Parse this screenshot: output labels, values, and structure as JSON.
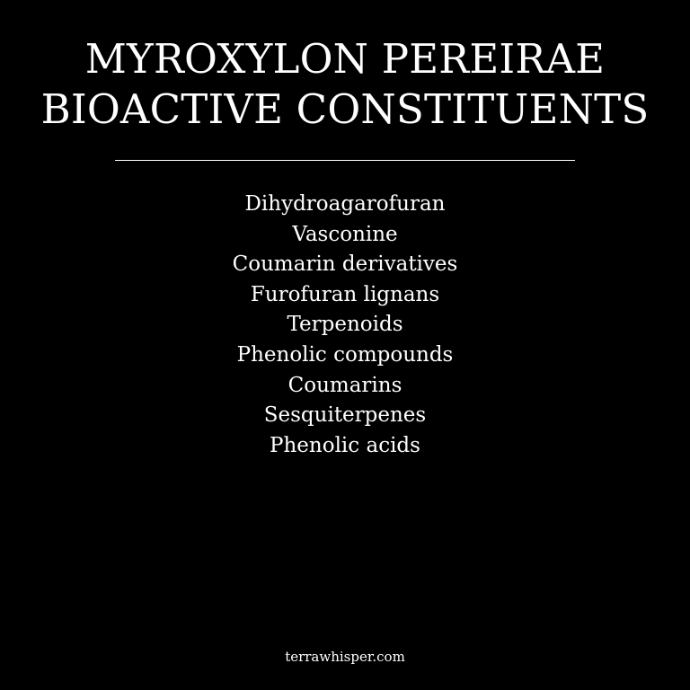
{
  "title": {
    "line1": "MYROXYLON PEREIRAE",
    "line2": "BIOACTIVE CONSTITUENTS"
  },
  "items": [
    "Dihydroagarofuran",
    "Vasconine",
    "Coumarin derivatives",
    "Furofuran lignans",
    "Terpenoids",
    "Phenolic compounds",
    "Coumarins",
    "Sesquiterpenes",
    "Phenolic acids"
  ],
  "footer": {
    "site": "terrawhisper.com"
  },
  "colors": {
    "background": "#000000",
    "text": "#ffffff"
  }
}
